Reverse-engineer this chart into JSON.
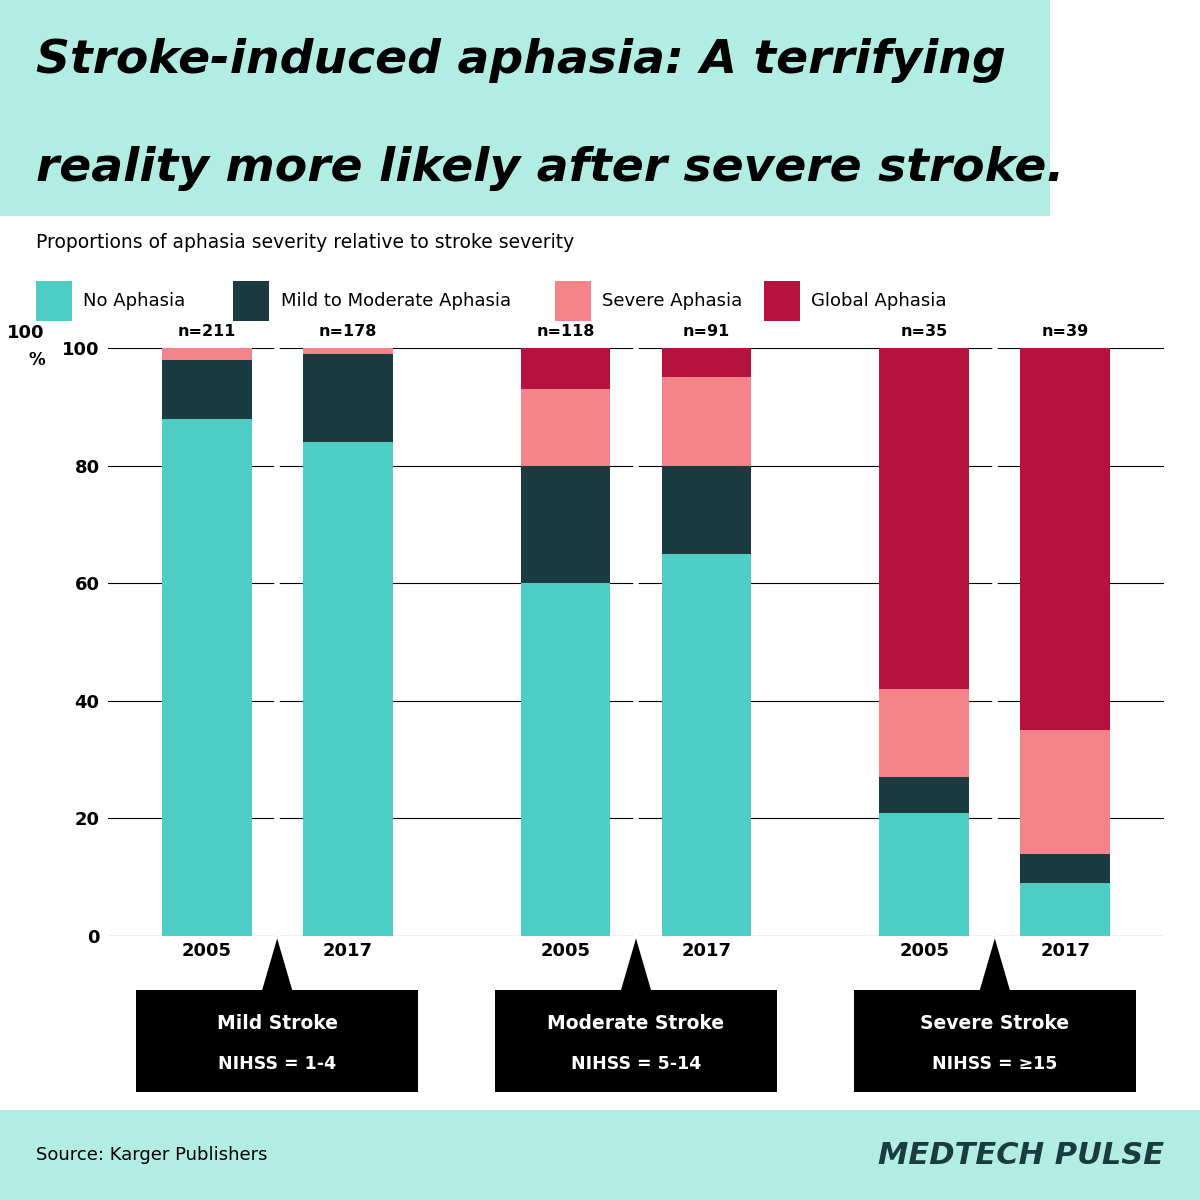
{
  "title_line1": "Stroke-induced aphasia: A terrifying",
  "title_line2": "reality more likely after severe stroke.",
  "subtitle": "Proportions of aphasia severity relative to stroke severity",
  "title_bg_color": "#b2ede4",
  "background_color": "#ffffff",
  "footer_bg_color": "#b2ede4",
  "source_text": "Source: Karger Publishers",
  "brand_text": "MEDTECH PULSE",
  "categories": [
    "2005",
    "2017",
    "2005",
    "2017",
    "2005",
    "2017"
  ],
  "n_labels": [
    "n=211",
    "n=178",
    "n=118",
    "n=91",
    "n=35",
    "n=39"
  ],
  "group_labels": [
    "Mild Stroke\nNIHSS = 1-4",
    "Moderate Stroke\nNIHSS = 5-14",
    "Severe Stroke\nNIHSS = ≥15"
  ],
  "no_aphasia": [
    88,
    84,
    60,
    65,
    21,
    9
  ],
  "mild_mod_aphasia": [
    10,
    15,
    20,
    15,
    6,
    5
  ],
  "severe_aphasia": [
    2,
    1,
    13,
    15,
    15,
    21
  ],
  "global_aphasia": [
    0,
    0,
    7,
    5,
    58,
    65
  ],
  "color_no_aphasia": "#4ecdc4",
  "color_mild_mod": "#1a3c40",
  "color_severe": "#f4838a",
  "color_global": "#b5133e",
  "ylim": [
    0,
    100
  ],
  "yticks": [
    0,
    20,
    40,
    60,
    80,
    100
  ],
  "bar_width": 0.7,
  "group_positions": [
    1.0,
    2.1,
    3.8,
    4.9,
    6.6,
    7.7
  ]
}
